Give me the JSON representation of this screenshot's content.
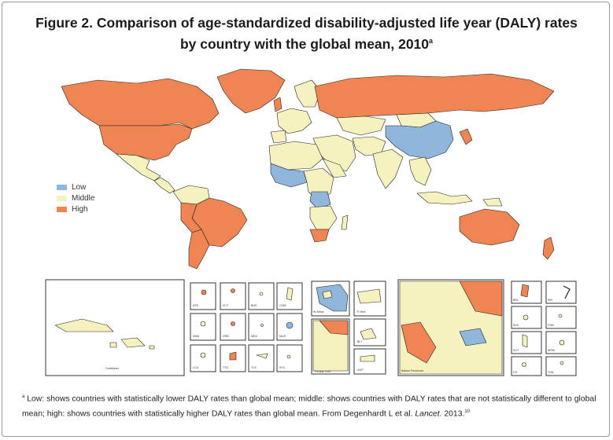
{
  "figure": {
    "title_line1": "Figure 2. Comparison of age-standardized disability-adjusted life year (DALY) rates",
    "title_line2": "by country with the global mean, 2010",
    "title_sup": "a"
  },
  "colors": {
    "low": "#8fb7db",
    "middle": "#f6f2bf",
    "high": "#ee8552",
    "nodata": "#ffffff",
    "border": "#222222"
  },
  "legend": {
    "items": [
      {
        "label": "Low",
        "category": "low"
      },
      {
        "label": "Middle",
        "category": "middle"
      },
      {
        "label": "High",
        "category": "high"
      }
    ]
  },
  "insets": {
    "caribbean_label": "Caribbean",
    "small_labels": [
      "ATG",
      "VCT",
      "BHS",
      "COM",
      "GRD",
      "MDV",
      "MUS",
      "LCA",
      "TTO",
      "TLS",
      "SYC",
      "DMA"
    ],
    "region_labels": [
      "W Africa",
      "E Med.",
      "Persian Gulf",
      "BLT",
      "SGP",
      "Balkan Peninsula"
    ],
    "pacific_labels": [
      "BRL",
      "KIR",
      "SLB",
      "FSM",
      "VUT",
      "WSM",
      "FJI",
      "TON"
    ]
  },
  "footnote": {
    "marker": "a",
    "text_main": " Low: shows countries with statistically lower DALY rates than global mean; middle: shows countries with DALY rates that are not statistically different to global mean; high: shows countries with statistically higher DALY rates than global mean. From Degenhardt L et al. ",
    "journal": "Lancet",
    "text_end": ". 2013.",
    "ref_marker": "10"
  }
}
